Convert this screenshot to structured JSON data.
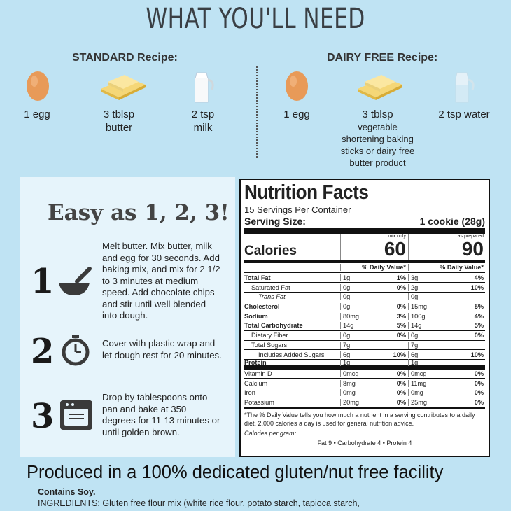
{
  "title": "WHAT YOU'LL NEED",
  "standard": {
    "heading": "STANDARD Recipe:",
    "items": [
      {
        "icon": "egg-icon",
        "line1": "1 egg",
        "line2": ""
      },
      {
        "icon": "butter-icon",
        "line1": "3 tblsp",
        "line2": "butter"
      },
      {
        "icon": "milk-icon",
        "line1": "2 tsp",
        "line2": "milk"
      }
    ]
  },
  "dairy_free": {
    "heading": "DAIRY FREE Recipe:",
    "items": [
      {
        "icon": "egg-icon",
        "line1": "1 egg"
      },
      {
        "icon": "butter-icon",
        "line1": "3 tblsp",
        "sub": [
          "vegetable",
          "shortening baking",
          "sticks or dairy free",
          "butter product"
        ]
      },
      {
        "icon": "water-icon",
        "line1": "2 tsp water"
      }
    ]
  },
  "steps": {
    "heading": "Easy as 1, 2, 3!",
    "items": [
      {
        "num": "1",
        "icon": "mixing-bowl-icon",
        "text": [
          "Melt butter.   Mix butter, milk",
          "and egg for 30 seconds.  Add",
          "baking mix, and mix for 2 1/2",
          "to 3 minutes at medium",
          "speed. Add chocolate chips",
          "and stir until well blended",
          "into dough."
        ]
      },
      {
        "num": "2",
        "icon": "timer-icon",
        "text": [
          "Cover with plastic wrap and",
          "let dough rest for 20 minutes."
        ]
      },
      {
        "num": "3",
        "icon": "oven-icon",
        "text": [
          "Drop by tablespoons onto",
          "pan and bake at 350",
          "degrees for 11-13 minutes or",
          "until golden brown."
        ]
      }
    ]
  },
  "nutrition": {
    "title": "Nutrition Facts",
    "servings": "15 Servings Per Container",
    "serving_size_label": "Serving Size:",
    "serving_size_value": "1 cookie (28g)",
    "col1_label": "mix only",
    "col2_label": "as prepared",
    "calories_label": "Calories",
    "calories_mix": "60",
    "calories_prepared": "90",
    "dv_header": "% Daily Value*",
    "rows": [
      {
        "label": "Total Fat",
        "style": "b",
        "a": "1g",
        "ap": "1%",
        "b": "3g",
        "bp": "4%"
      },
      {
        "label": "Saturated Fat",
        "style": "ind1",
        "a": "0g",
        "ap": "0%",
        "b": "2g",
        "bp": "10%"
      },
      {
        "label": "Trans Fat",
        "style": "ind2",
        "a": "0g",
        "ap": "",
        "b": "0g",
        "bp": ""
      },
      {
        "label": "Cholesterol",
        "style": "b",
        "a": "0g",
        "ap": "0%",
        "b": "15mg",
        "bp": "5%"
      },
      {
        "label": "Sodium",
        "style": "b",
        "a": "80mg",
        "ap": "3%",
        "b": "100g",
        "bp": "4%"
      },
      {
        "label": "Total Carbohydrate",
        "style": "b",
        "a": "14g",
        "ap": "5%",
        "b": "14g",
        "bp": "5%"
      },
      {
        "label": "Dietary Fiber",
        "style": "ind1",
        "a": "0g",
        "ap": "0%",
        "b": "0g",
        "bp": "0%"
      },
      {
        "label": "Total Sugars",
        "style": "ind1",
        "a": "7g",
        "ap": "",
        "b": "7g",
        "bp": ""
      },
      {
        "label": "Includes Added Sugars",
        "style": "ind2",
        "a": "6g",
        "ap": "10%",
        "b": "6g",
        "bp": "10%"
      },
      {
        "label": "Protein",
        "style": "b",
        "a": "1g",
        "ap": "",
        "b": "1g",
        "bp": ""
      },
      {
        "label": "Vitamin D",
        "style": "",
        "a": "0mcg",
        "ap": "0%",
        "b": "0mcg",
        "bp": "0%"
      },
      {
        "label": "Calcium",
        "style": "",
        "a": "8mg",
        "ap": "0%",
        "b": "11mg",
        "bp": "0%"
      },
      {
        "label": "Iron",
        "style": "",
        "a": "0mg",
        "ap": "0%",
        "b": "0mg",
        "bp": "0%"
      },
      {
        "label": "Potassium",
        "style": "",
        "a": "20mg",
        "ap": "0%",
        "b": "25mg",
        "bp": "0%"
      }
    ],
    "footnote": "*The % Daily Value tells you how much a nutrient in a serving contributes to a daily diet. 2,000 calories a day is used for general nutrition advice.",
    "cpg_label": "Calories per gram:",
    "cpg_values": "Fat 9     •   Carbohydrate 4    •    Protein 4"
  },
  "facility": "Produced in a 100% dedicated gluten/nut free facility",
  "contains": "Contains Soy.",
  "ingredients": "INGREDIENTS: Gluten free flour mix (white rice flour, potato starch, tapioca starch,"
}
